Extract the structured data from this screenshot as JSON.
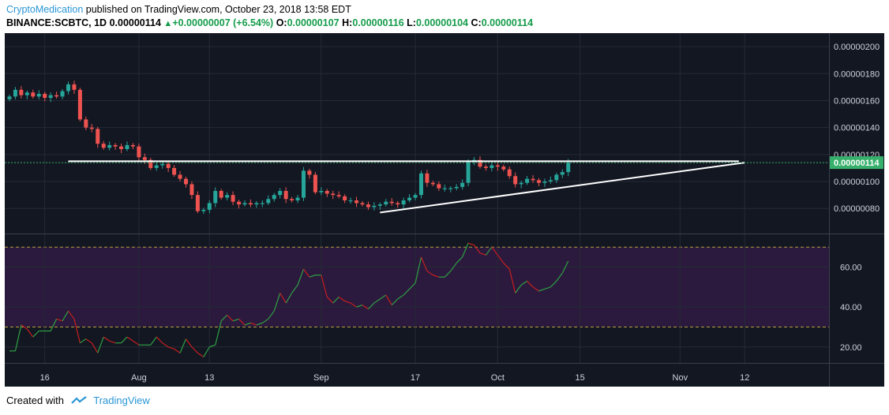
{
  "header": {
    "author": "CryptoMedication",
    "published": "published on TradingView.com, October 23, 2018 13:58 EDT",
    "symbol": "BINANCE:SCBTC, 1D",
    "last": "0.00000114",
    "change": "+0.00000007 (+6.54%)",
    "o_label": "O:",
    "o": "0.00000107",
    "h_label": "H:",
    "h": "0.00000116",
    "l_label": "L:",
    "l": "0.00000104",
    "c_label": "C:",
    "c": "0.00000114"
  },
  "footer": {
    "created_with": "Created with",
    "brand": "TradingView"
  },
  "colors": {
    "up": "#26a69a",
    "down": "#ef5350",
    "background": "#131722",
    "rsi_band": "#2b1a3d",
    "price_label": "#37b06c"
  },
  "chart_data": [
    {
      "type": "candlestick",
      "title": "BINANCE:SCBTC, 1D",
      "price_axis_ticks": [
        "0.00000200",
        "0.00000180",
        "0.00000160",
        "0.00000140",
        "0.00000120",
        "0.00000100",
        "0.00000080"
      ],
      "ylim": [
        6.2e-07,
        2.1e-06
      ],
      "last_price_label": "0.00000114",
      "x_ticks": [
        "16",
        "Aug",
        "13",
        "Sep",
        "17",
        "Oct",
        "15",
        "Nov",
        "12"
      ],
      "x_start_date": "2018-07-10",
      "closes": [
        1.63,
        1.68,
        1.64,
        1.66,
        1.63,
        1.65,
        1.62,
        1.64,
        1.63,
        1.67,
        1.72,
        1.68,
        1.46,
        1.4,
        1.39,
        1.28,
        1.25,
        1.27,
        1.26,
        1.24,
        1.27,
        1.26,
        1.18,
        1.16,
        1.1,
        1.12,
        1.13,
        1.1,
        1.05,
        1.02,
        0.98,
        0.9,
        0.78,
        0.79,
        0.84,
        0.93,
        0.88,
        0.9,
        0.85,
        0.83,
        0.84,
        0.83,
        0.84,
        0.84,
        0.87,
        0.9,
        0.93,
        0.87,
        0.86,
        0.88,
        1.08,
        1.05,
        0.92,
        0.93,
        0.91,
        0.9,
        0.89,
        0.86,
        0.86,
        0.84,
        0.83,
        0.81,
        0.82,
        0.83,
        0.85,
        0.84,
        0.83,
        0.86,
        0.88,
        0.9,
        1.06,
        0.99,
        0.98,
        0.95,
        0.95,
        0.95,
        0.96,
        0.99,
        1.15,
        1.16,
        1.11,
        1.1,
        1.12,
        1.11,
        1.09,
        1.04,
        0.98,
        0.99,
        1.02,
        1.01,
        0.99,
        1.0,
        1.01,
        1.05,
        1.07,
        1.14
      ],
      "annotations": [
        {
          "kind": "horizontal-resistance",
          "x0": "2018-07-20",
          "x1": "2018-11-11",
          "y": 1.15e-06
        },
        {
          "kind": "rising-support",
          "x0": "2018-09-11",
          "x1": "2018-11-12",
          "y0": 7.7e-07,
          "y1": 1.14e-06
        }
      ]
    },
    {
      "type": "line",
      "title": "RSI",
      "ylim": [
        12,
        76
      ],
      "ticks": [
        "60.00",
        "40.00",
        "20.00"
      ],
      "band": [
        30,
        70
      ],
      "values": [
        18,
        18,
        31,
        29,
        25,
        28,
        28,
        28,
        34,
        33,
        38,
        34,
        22,
        24,
        22,
        17,
        25,
        23,
        22,
        22,
        25,
        23,
        21,
        21,
        21,
        25,
        22,
        20,
        19,
        17,
        24,
        20,
        17,
        15,
        20,
        21,
        33,
        36,
        33,
        34,
        31,
        32,
        31,
        32,
        34,
        38,
        47,
        42,
        47,
        51,
        59,
        55,
        56,
        56,
        45,
        42,
        45,
        43,
        42,
        40,
        41,
        39,
        42,
        44,
        46,
        41,
        44,
        46,
        49,
        52,
        65,
        58,
        56,
        55,
        55,
        58,
        62,
        65,
        72,
        71,
        67,
        66,
        70,
        66,
        62,
        59,
        47,
        51,
        53,
        50,
        48,
        49,
        50,
        53,
        57,
        63
      ]
    }
  ]
}
